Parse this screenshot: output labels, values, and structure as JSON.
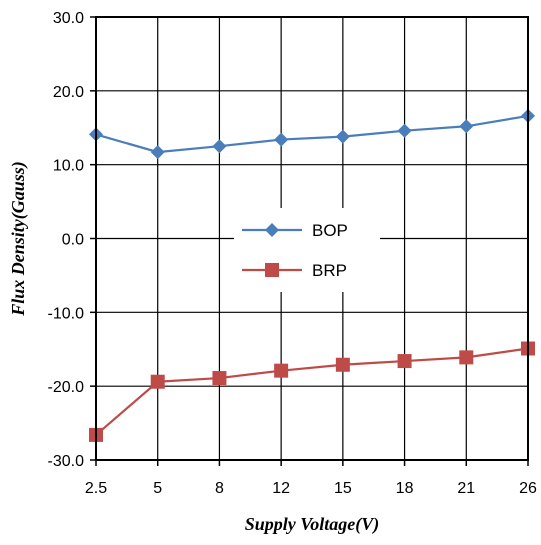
{
  "chart_data": {
    "type": "line",
    "xlabel": "Supply Voltage(V)",
    "ylabel": "Flux Density(Gauss)",
    "categories": [
      "2.5",
      "5",
      "8",
      "12",
      "15",
      "18",
      "21",
      "26"
    ],
    "ylim": [
      -30.0,
      30.0
    ],
    "y_ticks": [
      "30.0",
      "20.0",
      "10.0",
      "0.0",
      "-10.0",
      "-20.0",
      "-30.0"
    ],
    "grid": true,
    "legend_position": "center",
    "series": [
      {
        "name": "BOP",
        "color": "#4a7ebb",
        "marker": "diamond",
        "values": [
          14.1,
          11.7,
          12.5,
          13.4,
          13.8,
          14.6,
          15.2,
          16.6
        ]
      },
      {
        "name": "BRP",
        "color": "#be4b48",
        "marker": "square",
        "values": [
          -26.6,
          -19.4,
          -18.9,
          -17.9,
          -17.1,
          -16.6,
          -16.1,
          -14.9
        ]
      }
    ]
  }
}
